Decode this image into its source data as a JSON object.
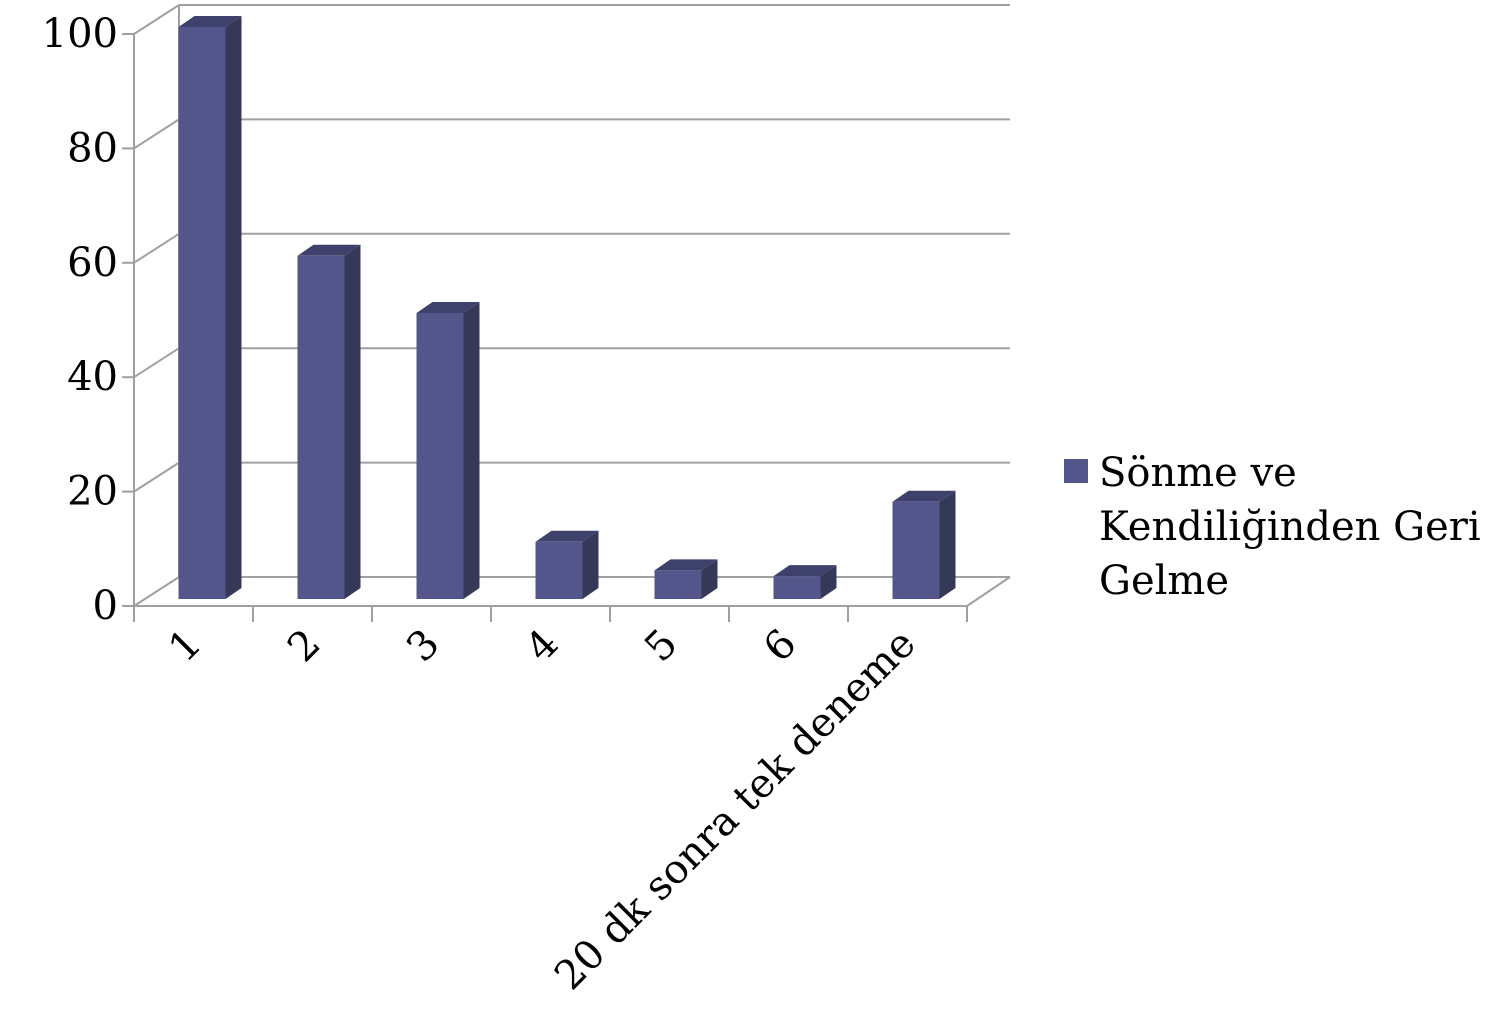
{
  "chart_data": {
    "type": "bar",
    "style": "3d-column",
    "categories": [
      "1",
      "2",
      "3",
      "4",
      "5",
      "6",
      "20 dk sonra tek deneme"
    ],
    "series": [
      {
        "name": "Sönme ve Kendiliğinden Geri Gelme",
        "values": [
          100,
          60,
          50,
          10,
          5,
          4,
          17
        ],
        "color": "#53568a"
      }
    ],
    "y_ticks": [
      "0",
      "20",
      "40",
      "60",
      "80",
      "100"
    ],
    "ylim": [
      0,
      100
    ],
    "grid": true,
    "legend": {
      "position": "right",
      "lines": [
        "Sönme ve",
        "Kendiliğinden Geri",
        "Gelme"
      ]
    },
    "colors": {
      "front": "#53568a",
      "side": "#353857",
      "top": "#3e416b",
      "grid": "#a0a0a0"
    }
  }
}
